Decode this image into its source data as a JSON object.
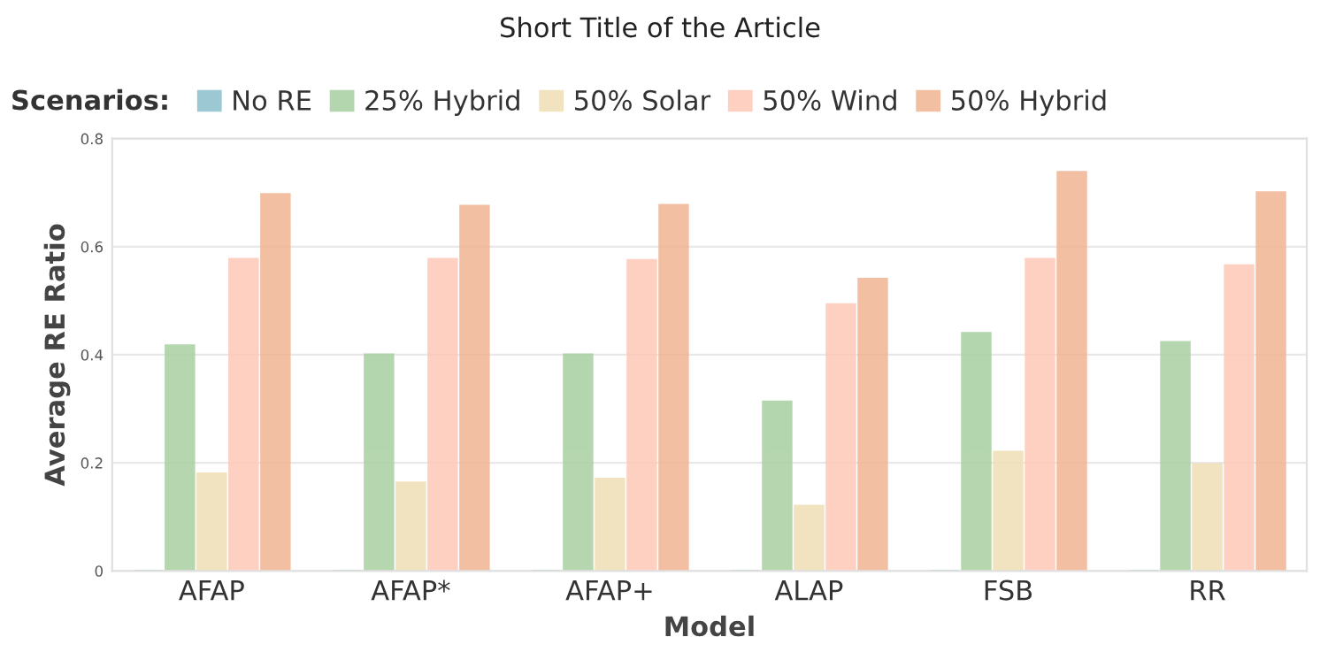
{
  "chart_data": {
    "type": "bar",
    "title": "Short Title of the Article",
    "xlabel": "Model",
    "ylabel": "Average RE Ratio",
    "legend_title": "Scenarios:",
    "categories": [
      "AFAP",
      "AFAP*",
      "AFAP+",
      "ALAP",
      "FSB",
      "RR"
    ],
    "series": [
      {
        "name": "No RE",
        "color": "#8bbfcc",
        "values": [
          0,
          0,
          0,
          0,
          0,
          0
        ]
      },
      {
        "name": "25% Hybrid",
        "color": "#a8cfa0",
        "values": [
          0.417,
          0.4,
          0.4,
          0.313,
          0.44,
          0.423
        ]
      },
      {
        "name": "50% Solar",
        "color": "#efdfb5",
        "values": [
          0.18,
          0.163,
          0.17,
          0.12,
          0.22,
          0.197
        ]
      },
      {
        "name": "50% Wind",
        "color": "#fdc8b8",
        "values": [
          0.577,
          0.577,
          0.575,
          0.493,
          0.577,
          0.565
        ]
      },
      {
        "name": "50% Hybrid",
        "color": "#f0b492",
        "values": [
          0.697,
          0.675,
          0.677,
          0.54,
          0.738,
          0.7
        ]
      }
    ],
    "ylim": [
      0,
      0.8
    ],
    "yticks": [
      0,
      0.2,
      0.4,
      0.6,
      0.8
    ],
    "grid": "y",
    "legend": "top"
  }
}
